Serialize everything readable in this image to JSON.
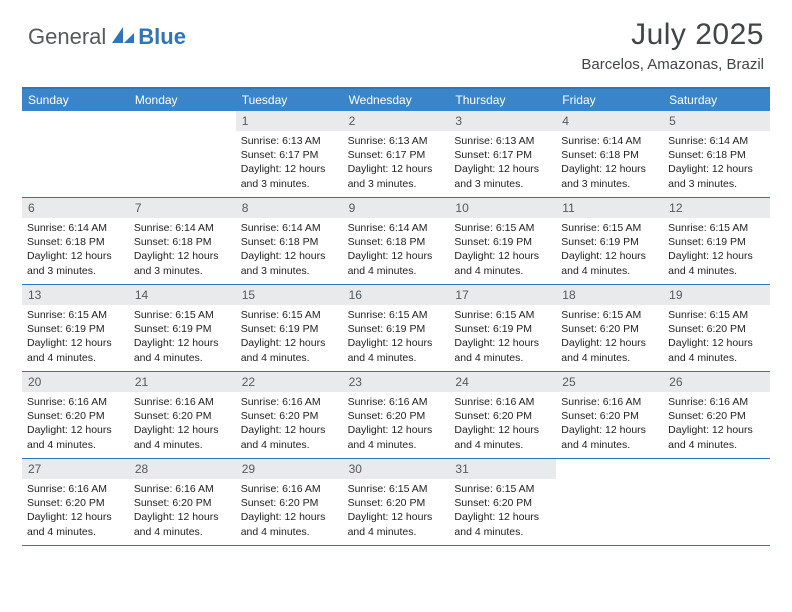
{
  "brand": {
    "part1": "General",
    "part2": "Blue"
  },
  "title": "July 2025",
  "location": "Barcelos, Amazonas, Brazil",
  "colors": {
    "accent": "#2f76b8",
    "header_bg": "#3a85c9",
    "daynum_bg": "#e8eaec",
    "text_dark": "#404548",
    "text_body": "#222222",
    "background": "#ffffff"
  },
  "weekdays": [
    "Sunday",
    "Monday",
    "Tuesday",
    "Wednesday",
    "Thursday",
    "Friday",
    "Saturday"
  ],
  "weeks": [
    [
      null,
      null,
      {
        "n": "1",
        "sunrise": "6:13 AM",
        "sunset": "6:17 PM",
        "daylight": "12 hours and 3 minutes."
      },
      {
        "n": "2",
        "sunrise": "6:13 AM",
        "sunset": "6:17 PM",
        "daylight": "12 hours and 3 minutes."
      },
      {
        "n": "3",
        "sunrise": "6:13 AM",
        "sunset": "6:17 PM",
        "daylight": "12 hours and 3 minutes."
      },
      {
        "n": "4",
        "sunrise": "6:14 AM",
        "sunset": "6:18 PM",
        "daylight": "12 hours and 3 minutes."
      },
      {
        "n": "5",
        "sunrise": "6:14 AM",
        "sunset": "6:18 PM",
        "daylight": "12 hours and 3 minutes."
      }
    ],
    [
      {
        "n": "6",
        "sunrise": "6:14 AM",
        "sunset": "6:18 PM",
        "daylight": "12 hours and 3 minutes."
      },
      {
        "n": "7",
        "sunrise": "6:14 AM",
        "sunset": "6:18 PM",
        "daylight": "12 hours and 3 minutes."
      },
      {
        "n": "8",
        "sunrise": "6:14 AM",
        "sunset": "6:18 PM",
        "daylight": "12 hours and 3 minutes."
      },
      {
        "n": "9",
        "sunrise": "6:14 AM",
        "sunset": "6:18 PM",
        "daylight": "12 hours and 4 minutes."
      },
      {
        "n": "10",
        "sunrise": "6:15 AM",
        "sunset": "6:19 PM",
        "daylight": "12 hours and 4 minutes."
      },
      {
        "n": "11",
        "sunrise": "6:15 AM",
        "sunset": "6:19 PM",
        "daylight": "12 hours and 4 minutes."
      },
      {
        "n": "12",
        "sunrise": "6:15 AM",
        "sunset": "6:19 PM",
        "daylight": "12 hours and 4 minutes."
      }
    ],
    [
      {
        "n": "13",
        "sunrise": "6:15 AM",
        "sunset": "6:19 PM",
        "daylight": "12 hours and 4 minutes."
      },
      {
        "n": "14",
        "sunrise": "6:15 AM",
        "sunset": "6:19 PM",
        "daylight": "12 hours and 4 minutes."
      },
      {
        "n": "15",
        "sunrise": "6:15 AM",
        "sunset": "6:19 PM",
        "daylight": "12 hours and 4 minutes."
      },
      {
        "n": "16",
        "sunrise": "6:15 AM",
        "sunset": "6:19 PM",
        "daylight": "12 hours and 4 minutes."
      },
      {
        "n": "17",
        "sunrise": "6:15 AM",
        "sunset": "6:19 PM",
        "daylight": "12 hours and 4 minutes."
      },
      {
        "n": "18",
        "sunrise": "6:15 AM",
        "sunset": "6:20 PM",
        "daylight": "12 hours and 4 minutes."
      },
      {
        "n": "19",
        "sunrise": "6:15 AM",
        "sunset": "6:20 PM",
        "daylight": "12 hours and 4 minutes."
      }
    ],
    [
      {
        "n": "20",
        "sunrise": "6:16 AM",
        "sunset": "6:20 PM",
        "daylight": "12 hours and 4 minutes."
      },
      {
        "n": "21",
        "sunrise": "6:16 AM",
        "sunset": "6:20 PM",
        "daylight": "12 hours and 4 minutes."
      },
      {
        "n": "22",
        "sunrise": "6:16 AM",
        "sunset": "6:20 PM",
        "daylight": "12 hours and 4 minutes."
      },
      {
        "n": "23",
        "sunrise": "6:16 AM",
        "sunset": "6:20 PM",
        "daylight": "12 hours and 4 minutes."
      },
      {
        "n": "24",
        "sunrise": "6:16 AM",
        "sunset": "6:20 PM",
        "daylight": "12 hours and 4 minutes."
      },
      {
        "n": "25",
        "sunrise": "6:16 AM",
        "sunset": "6:20 PM",
        "daylight": "12 hours and 4 minutes."
      },
      {
        "n": "26",
        "sunrise": "6:16 AM",
        "sunset": "6:20 PM",
        "daylight": "12 hours and 4 minutes."
      }
    ],
    [
      {
        "n": "27",
        "sunrise": "6:16 AM",
        "sunset": "6:20 PM",
        "daylight": "12 hours and 4 minutes."
      },
      {
        "n": "28",
        "sunrise": "6:16 AM",
        "sunset": "6:20 PM",
        "daylight": "12 hours and 4 minutes."
      },
      {
        "n": "29",
        "sunrise": "6:16 AM",
        "sunset": "6:20 PM",
        "daylight": "12 hours and 4 minutes."
      },
      {
        "n": "30",
        "sunrise": "6:15 AM",
        "sunset": "6:20 PM",
        "daylight": "12 hours and 4 minutes."
      },
      {
        "n": "31",
        "sunrise": "6:15 AM",
        "sunset": "6:20 PM",
        "daylight": "12 hours and 4 minutes."
      },
      null,
      null
    ]
  ],
  "labels": {
    "sunrise_prefix": "Sunrise: ",
    "sunset_prefix": "Sunset: ",
    "daylight_prefix": "Daylight: "
  }
}
